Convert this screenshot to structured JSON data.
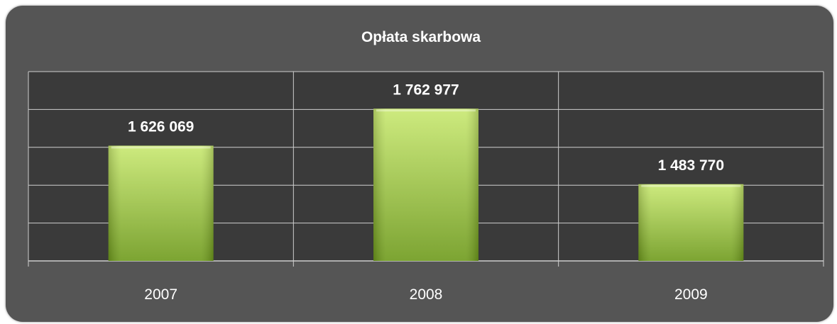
{
  "chart_data": {
    "type": "bar",
    "title": "Opłata skarbowa",
    "categories": [
      "2007",
      "2008",
      "2009"
    ],
    "values": [
      1626069,
      1762977,
      1483770
    ],
    "value_labels": [
      "1 626 069",
      "1 762 977",
      "1 483 770"
    ],
    "xlabel": "",
    "ylabel": "",
    "ylim": [
      1200000,
      1900000
    ],
    "grid": true,
    "legend": "none",
    "colors": {
      "frame": "#555555",
      "plot_background": "#3a3a3a",
      "gridline": "#cfcfcf",
      "bar_top": "#c8e870",
      "bar_bottom": "#6e9a1c",
      "text": "#ffffff"
    }
  }
}
